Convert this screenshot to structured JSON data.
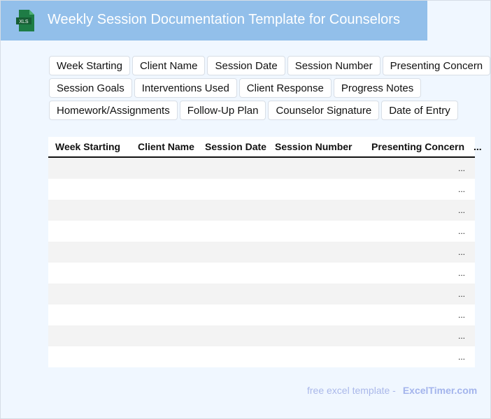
{
  "header": {
    "title": "Weekly Session Documentation Template for Counselors",
    "logo_text": "XLS",
    "color": "#92bfea"
  },
  "fields": [
    "Week Starting",
    "Client Name",
    "Session Date",
    "Session Number",
    "Presenting Concern",
    "Session Goals",
    "Interventions Used",
    "Client Response",
    "Progress Notes",
    "Homework/Assignments",
    "Follow-Up Plan",
    "Counselor Signature",
    "Date of Entry"
  ],
  "table": {
    "columns": [
      "Week Starting",
      "Client Name",
      "Session Date",
      "Session Number",
      "Presenting Concern",
      "..."
    ],
    "rows": [
      "...",
      "...",
      "...",
      "...",
      "...",
      "...",
      "...",
      "...",
      "...",
      "..."
    ]
  },
  "footer": {
    "text": "free excel template -",
    "brand": "ExcelTimer.com"
  }
}
